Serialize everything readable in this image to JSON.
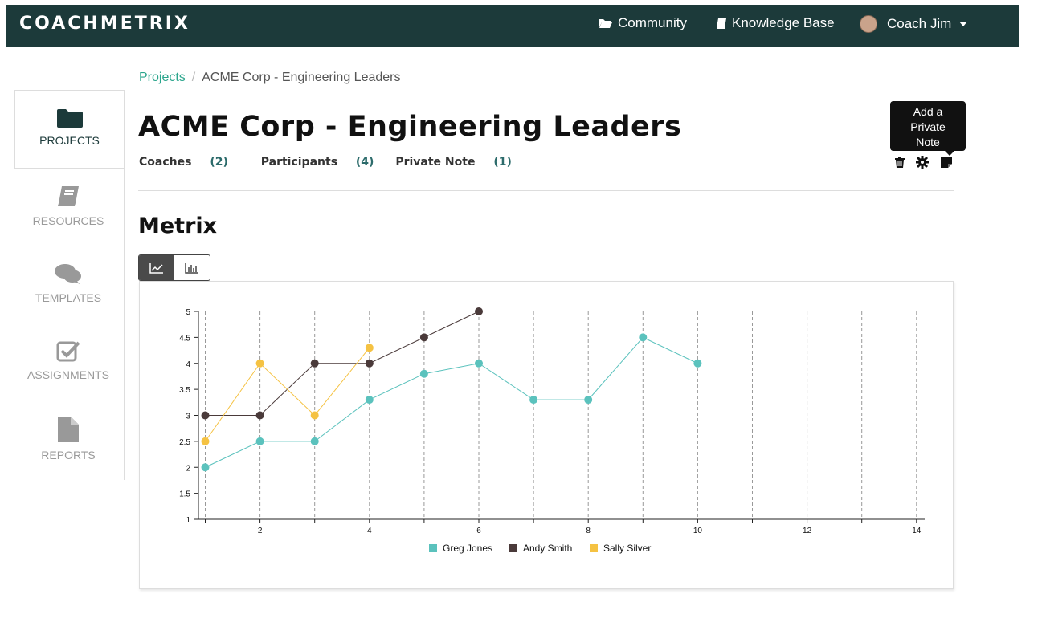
{
  "app": {
    "logo": "COACHMETRIX"
  },
  "topnav": {
    "community": "Community",
    "knowledge_base": "Knowledge Base",
    "user": "Coach Jim"
  },
  "sidebar": {
    "items": [
      {
        "label": "PROJECTS",
        "icon": "folder-icon",
        "active": true
      },
      {
        "label": "RESOURCES",
        "icon": "book-icon",
        "active": false
      },
      {
        "label": "TEMPLATES",
        "icon": "comments-icon",
        "active": false
      },
      {
        "label": "ASSIGNMENTS",
        "icon": "check-square-icon",
        "active": false
      },
      {
        "label": "REPORTS",
        "icon": "file-icon",
        "active": false
      }
    ]
  },
  "breadcrumb": {
    "root": "Projects",
    "separator": "/",
    "current": "ACME Corp - Engineering Leaders"
  },
  "project": {
    "title": "ACME Corp - Engineering Leaders",
    "coaches_label": "Coaches",
    "coaches_count": "(2)",
    "participants_label": "Participants",
    "participants_count": "(4)",
    "note_label": "Private Note",
    "note_count": "(1)"
  },
  "actions": {
    "tooltip": "Add a Private Note",
    "tooltip_lines": [
      "Add a",
      "Private",
      "Note"
    ],
    "icons": [
      "trash-icon",
      "gear-icon",
      "sticky-note-icon"
    ]
  },
  "section": {
    "title": "Metrix"
  },
  "colors": {
    "brand": "#1c3a3a",
    "link": "#2aa58c",
    "greg": "#5bc2bd",
    "andy": "#4a3a3a",
    "sally": "#f5c242"
  },
  "chart_data": {
    "type": "line",
    "xlim": [
      1,
      14
    ],
    "ylim": [
      1,
      5
    ],
    "x_ticks": [
      2,
      4,
      6,
      8,
      10,
      12,
      14
    ],
    "x_ticks_minor": [
      1,
      2,
      3,
      4,
      5,
      6,
      7,
      8,
      9,
      10,
      11,
      12,
      13,
      14
    ],
    "y_ticks": [
      1,
      1.5,
      2,
      2.5,
      3,
      3.5,
      4,
      4.5,
      5
    ],
    "grid": "vertical dashed",
    "legend": "bottom-center",
    "series": [
      {
        "name": "Greg Jones",
        "color": "#5bc2bd",
        "x": [
          1,
          2,
          3,
          4,
          5,
          6,
          7,
          8,
          9,
          10
        ],
        "y": [
          2,
          2.5,
          2.5,
          3.3,
          3.8,
          4,
          3.3,
          3.3,
          4.5,
          4
        ]
      },
      {
        "name": "Andy Smith",
        "color": "#4a3a3a",
        "x": [
          1,
          2,
          3,
          4,
          5,
          6
        ],
        "y": [
          3,
          3,
          4,
          4,
          4.5,
          5
        ]
      },
      {
        "name": "Sally Silver",
        "color": "#f5c242",
        "x": [
          1,
          2,
          3,
          4
        ],
        "y": [
          2.5,
          4,
          3,
          4.3
        ]
      }
    ]
  }
}
